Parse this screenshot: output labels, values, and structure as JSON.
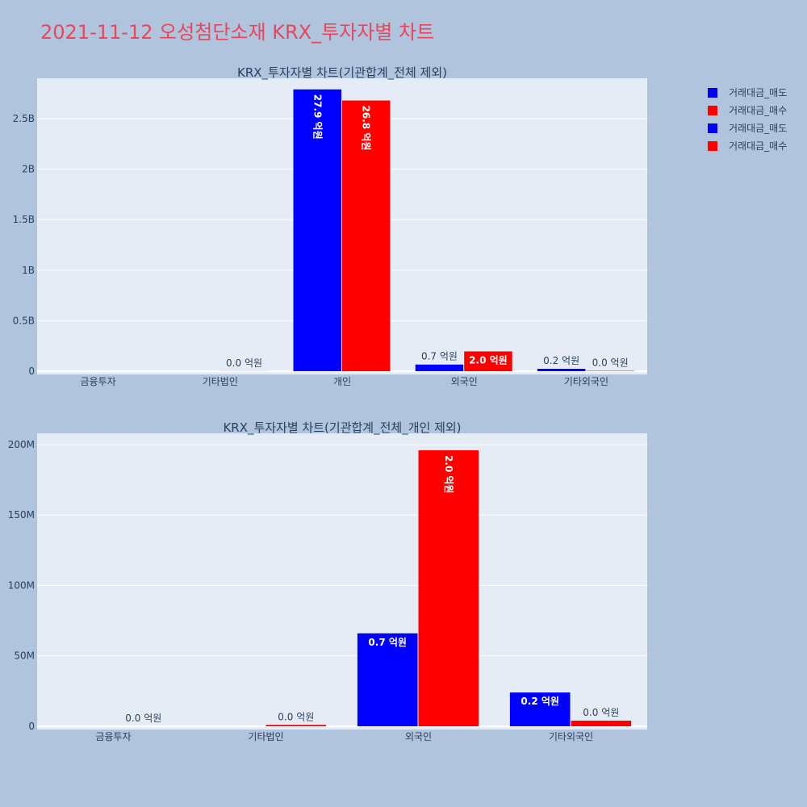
{
  "title": "2021-11-12 오성첨단소재 KRX_투자자별 차트",
  "legend": {
    "items": [
      {
        "name": "거래대금_매도",
        "color": "#0000ff"
      },
      {
        "name": "거래대금_매수",
        "color": "#ff0000"
      },
      {
        "name": "거래대금_매도",
        "color": "#0000ff"
      },
      {
        "name": "거래대금_매수",
        "color": "#ff0000"
      }
    ]
  },
  "chart_data": [
    {
      "type": "bar",
      "title": "KRX_투자자별 차트(기관합계_전체 제외)",
      "categories": [
        "금융투자",
        "기타법인",
        "개인",
        "외국인",
        "기타외국인"
      ],
      "series": [
        {
          "name": "거래대금_매도",
          "color": "#0000ff",
          "values": [
            0,
            0,
            2790000000,
            66000000,
            24000000
          ],
          "labels": [
            "",
            "",
            "27.9 억원",
            "0.7 억원",
            "0.2 억원"
          ]
        },
        {
          "name": "거래대금_매수",
          "color": "#ff0000",
          "values": [
            0,
            1000000,
            2680000000,
            196000000,
            4000000
          ],
          "labels": [
            "",
            "0.0 억원",
            "26.8 억원",
            "2.0 억원",
            "0.0 억원"
          ]
        }
      ],
      "ylim": [
        0,
        2900000000
      ],
      "yticks": [
        {
          "value": 0,
          "label": "0"
        },
        {
          "value": 500000000,
          "label": "0.5B"
        },
        {
          "value": 1000000000,
          "label": "1B"
        },
        {
          "value": 1500000000,
          "label": "1.5B"
        },
        {
          "value": 2000000000,
          "label": "2B"
        },
        {
          "value": 2500000000,
          "label": "2.5B"
        }
      ],
      "grid": true
    },
    {
      "type": "bar",
      "title": "KRX_투자자별 차트(기관합계_전체_개인 제외)",
      "categories": [
        "금융투자",
        "기타법인",
        "외국인",
        "기타외국인"
      ],
      "series": [
        {
          "name": "거래대금_매도",
          "color": "#0000ff",
          "values": [
            0,
            0,
            66000000,
            24000000
          ],
          "labels": [
            "",
            "",
            "0.7 억원",
            "0.2 억원"
          ]
        },
        {
          "name": "거래대금_매수",
          "color": "#ff0000",
          "values": [
            0,
            1000000,
            196000000,
            4000000
          ],
          "labels": [
            "0.0 억원",
            "0.0 억원",
            "2.0 억원",
            "0.0 억원"
          ]
        }
      ],
      "ylim": [
        0,
        208000000
      ],
      "yticks": [
        {
          "value": 0,
          "label": "0"
        },
        {
          "value": 50000000,
          "label": "50M"
        },
        {
          "value": 100000000,
          "label": "100M"
        },
        {
          "value": 150000000,
          "label": "150M"
        },
        {
          "value": 200000000,
          "label": "200M"
        }
      ],
      "grid": true
    }
  ]
}
